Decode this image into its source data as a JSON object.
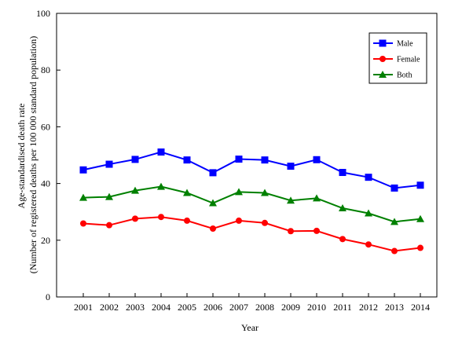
{
  "chart_data": {
    "type": "line",
    "title": "",
    "xlabel": "Year",
    "ylabel_lines": [
      "Age-standardised death rate",
      "(Number of registered deaths per 100 000 standard population)"
    ],
    "ylim": [
      0,
      100
    ],
    "yticks": [
      0,
      20,
      40,
      60,
      80,
      100
    ],
    "categories": [
      "2001",
      "2002",
      "2003",
      "2004",
      "2005",
      "2006",
      "2007",
      "2008",
      "2009",
      "2010",
      "2011",
      "2012",
      "2013",
      "2014"
    ],
    "grid": false,
    "legend_position": "top-right",
    "series": [
      {
        "name": "Male",
        "color": "#0000ff",
        "marker": "square",
        "values": [
          44.8,
          46.8,
          48.5,
          51.1,
          48.3,
          43.8,
          48.6,
          48.3,
          46.1,
          48.4,
          43.9,
          42.2,
          38.4,
          39.4
        ]
      },
      {
        "name": "Female",
        "color": "#ff0000",
        "marker": "circle",
        "values": [
          25.9,
          25.3,
          27.6,
          28.2,
          26.9,
          24.1,
          26.9,
          26.1,
          23.2,
          23.3,
          20.4,
          18.5,
          16.2,
          17.3
        ]
      },
      {
        "name": "Both",
        "color": "#008000",
        "marker": "triangle",
        "values": [
          35.0,
          35.3,
          37.5,
          38.9,
          36.7,
          33.1,
          37.0,
          36.7,
          34.0,
          34.8,
          31.3,
          29.5,
          26.5,
          27.5
        ]
      }
    ]
  }
}
